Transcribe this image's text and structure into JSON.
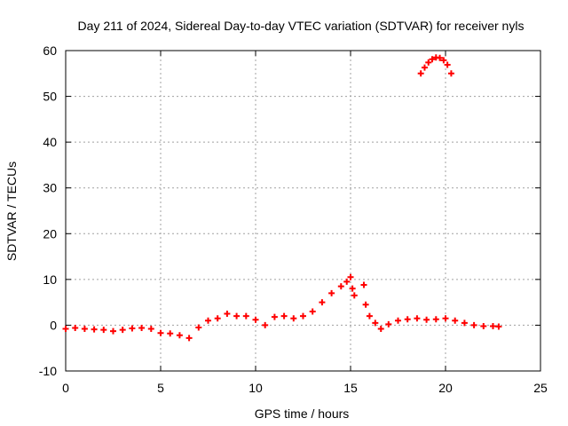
{
  "chart_data": {
    "type": "scatter",
    "title": "Day 211 of 2024, Sidereal Day-to-day VTEC variation (SDTVAR) for receiver nyls",
    "xlabel": "GPS time / hours",
    "ylabel": "SDTVAR / TECUs",
    "xlim": [
      0,
      25
    ],
    "ylim": [
      -10,
      60
    ],
    "x_ticks": [
      0,
      5,
      10,
      15,
      20,
      25
    ],
    "y_ticks": [
      -10,
      0,
      10,
      20,
      30,
      40,
      50,
      60
    ],
    "grid": true,
    "marker": "+",
    "series_color": "#ff0000",
    "series": [
      {
        "name": "SDTVAR",
        "points": [
          [
            0.0,
            -0.8
          ],
          [
            0.5,
            -0.6
          ],
          [
            1.0,
            -0.8
          ],
          [
            1.5,
            -0.9
          ],
          [
            2.0,
            -1.0
          ],
          [
            2.5,
            -1.3
          ],
          [
            3.0,
            -1.0
          ],
          [
            3.5,
            -0.7
          ],
          [
            4.0,
            -0.6
          ],
          [
            4.5,
            -0.8
          ],
          [
            5.0,
            -1.7
          ],
          [
            5.5,
            -1.8
          ],
          [
            6.0,
            -2.2
          ],
          [
            6.5,
            -2.8
          ],
          [
            7.0,
            -0.5
          ],
          [
            7.5,
            1.0
          ],
          [
            8.0,
            1.5
          ],
          [
            8.5,
            2.5
          ],
          [
            9.0,
            2.0
          ],
          [
            9.5,
            2.0
          ],
          [
            10.0,
            1.2
          ],
          [
            10.5,
            0.0
          ],
          [
            11.0,
            1.8
          ],
          [
            11.5,
            2.0
          ],
          [
            12.0,
            1.5
          ],
          [
            12.5,
            2.0
          ],
          [
            13.0,
            3.0
          ],
          [
            13.5,
            5.0
          ],
          [
            14.0,
            7.0
          ],
          [
            14.5,
            8.5
          ],
          [
            14.8,
            9.5
          ],
          [
            15.0,
            10.5
          ],
          [
            15.1,
            8.0
          ],
          [
            15.2,
            6.5
          ],
          [
            15.7,
            8.8
          ],
          [
            15.8,
            4.5
          ],
          [
            16.0,
            2.0
          ],
          [
            16.3,
            0.5
          ],
          [
            16.6,
            -0.8
          ],
          [
            17.0,
            0.2
          ],
          [
            17.5,
            1.0
          ],
          [
            18.0,
            1.3
          ],
          [
            18.5,
            1.5
          ],
          [
            19.0,
            1.2
          ],
          [
            19.5,
            1.3
          ],
          [
            20.0,
            1.5
          ],
          [
            20.5,
            1.0
          ],
          [
            21.0,
            0.5
          ],
          [
            21.5,
            0.0
          ],
          [
            22.0,
            -0.2
          ],
          [
            22.5,
            -0.2
          ],
          [
            22.8,
            -0.3
          ],
          [
            18.7,
            55.0
          ],
          [
            18.9,
            56.3
          ],
          [
            19.1,
            57.4
          ],
          [
            19.3,
            58.1
          ],
          [
            19.5,
            58.5
          ],
          [
            19.7,
            58.4
          ],
          [
            19.9,
            57.9
          ],
          [
            20.1,
            56.9
          ],
          [
            20.3,
            55.0
          ]
        ]
      }
    ]
  }
}
